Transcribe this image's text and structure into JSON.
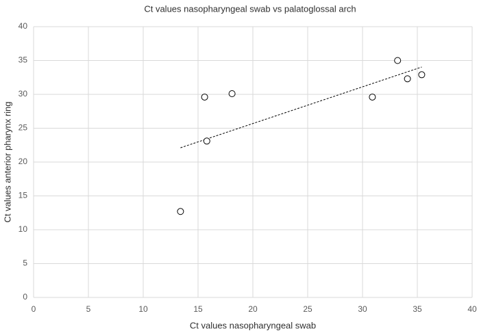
{
  "chart_data": {
    "type": "scatter",
    "title": "Ct values nasopharyngeal swab vs palatoglossal arch",
    "x_label": "Ct values nasopharyngeal swab",
    "y_label": "Ct values anterior pharynx ring",
    "x": [
      13.4,
      15.6,
      15.8,
      18.1,
      30.9,
      33.2,
      34.1,
      35.4
    ],
    "values": [
      12.7,
      29.6,
      23.1,
      30.1,
      29.6,
      35.0,
      32.3,
      32.9
    ],
    "color": "#000000",
    "xlim": [
      0,
      40
    ],
    "xticks": [
      0,
      5,
      10,
      15,
      20,
      25,
      30,
      35,
      40
    ],
    "ylim": [
      0,
      40
    ],
    "yticks": [
      0,
      5,
      10,
      15,
      20,
      25,
      30,
      35,
      40
    ],
    "grid": true,
    "trendline": "linear"
  }
}
